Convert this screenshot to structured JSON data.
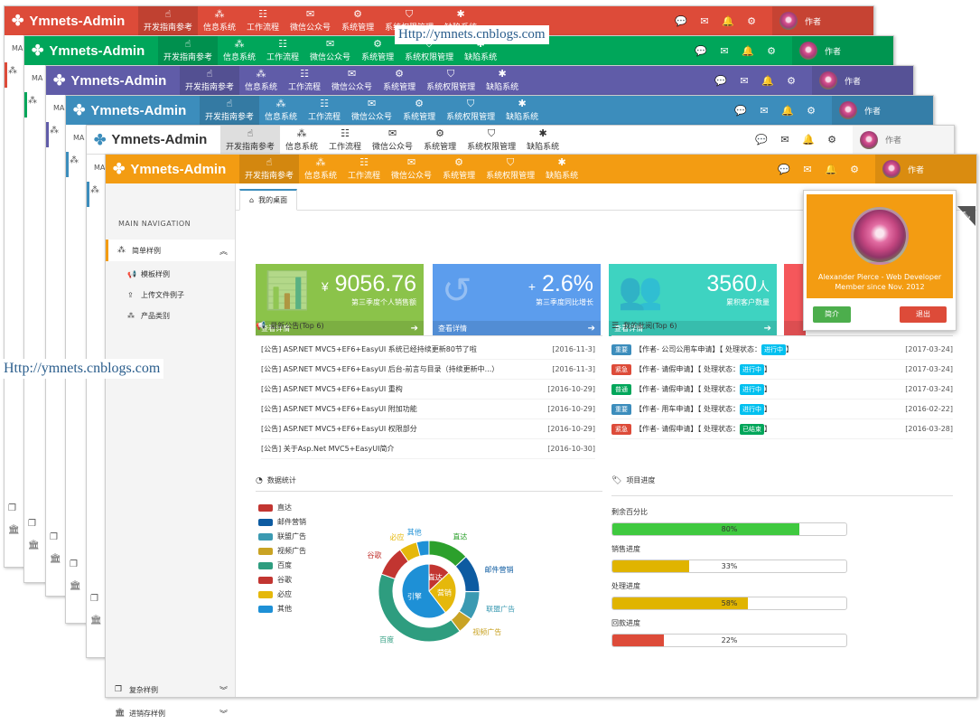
{
  "app": {
    "logo_icon": "pinwheel-icon",
    "title": "Ymnets-Admin"
  },
  "nav": [
    {
      "label": "开发指南参考",
      "icon": "hand-pointer-icon"
    },
    {
      "label": "信息系统",
      "icon": "sitemap-icon"
    },
    {
      "label": "工作流程",
      "icon": "list-ordered-icon"
    },
    {
      "label": "微信公众号",
      "icon": "wechat-icon"
    },
    {
      "label": "系统管理",
      "icon": "gears-icon"
    },
    {
      "label": "系统权限管理",
      "icon": "shield-icon"
    },
    {
      "label": "缺陷系统",
      "icon": "bug-icon"
    }
  ],
  "topbar": {
    "user": "作者",
    "icons": [
      "comment-icon",
      "envelope-icon",
      "bell-icon",
      "gears-icon"
    ]
  },
  "themes": [
    "#dd4b39",
    "#00a65a",
    "#605ca8",
    "#3c8dbc",
    "#ffffff",
    "#f39c12"
  ],
  "sidebar": {
    "heading": "MAIN NAVIGATION",
    "stub_heading": "MA",
    "menu": "简单样例",
    "sub": [
      "模板样例",
      "上传文件例子",
      "产品类别"
    ],
    "bottom": [
      "复杂样例",
      "进销存样例"
    ]
  },
  "tab": {
    "label": "我的桌面"
  },
  "stats": [
    {
      "prefix": "¥",
      "value": "9056.76",
      "suffix": "",
      "label": "第三季度个人销售额",
      "more": "查看详情",
      "color": "#8bc34a"
    },
    {
      "prefix": "+",
      "value": "2.6%",
      "suffix": "",
      "label": "第三季度同比增长",
      "more": "查看详情",
      "color": "#5c9ded"
    },
    {
      "prefix": "",
      "value": "3560",
      "suffix": "人",
      "label": "累积客户数量",
      "more": "查看详情",
      "color": "#3ed3c1"
    }
  ],
  "notice": {
    "title": "最新公告(Top 6)",
    "rows": [
      {
        "text": "[公告] ASP.NET MVC5+EF6+EasyUI 系统已经持续更新80节了啦",
        "date": "[2016-11-3]"
      },
      {
        "text": "[公告] ASP.NET MVC5+EF6+EasyUI 后台-前言与目录（持续更新中...）",
        "date": "[2016-11-3]"
      },
      {
        "text": "[公告] ASP.NET MVC5+EF6+EasyUI 重构",
        "date": "[2016-10-29]"
      },
      {
        "text": "[公告] ASP.NET MVC5+EF6+EasyUI 附加功能",
        "date": "[2016-10-29]"
      },
      {
        "text": "[公告] ASP.NET MVC5+EF6+EasyUI 权限部分",
        "date": "[2016-10-29]"
      },
      {
        "text": "[公告] 关于Asp.Net MVC5+EasyUI简介",
        "date": "[2016-10-30]"
      }
    ]
  },
  "approval": {
    "title": "我的批阅(Top 6)",
    "rows": [
      {
        "tag": "重要",
        "tagcolor": "#3c8dbc",
        "text": "【作者- 公司公用车申请】【 处理状态：",
        "status": "进行中",
        "scolor": "#00c0ef",
        "date": "[2017-03-24]"
      },
      {
        "tag": "紧急",
        "tagcolor": "#dd4b39",
        "text": "【作者- 请假申请】【 处理状态：",
        "status": "进行中",
        "scolor": "#00c0ef",
        "date": "[2017-03-24]"
      },
      {
        "tag": "普通",
        "tagcolor": "#00a65a",
        "text": "【作者- 请假申请】【 处理状态：",
        "status": "进行中",
        "scolor": "#00c0ef",
        "date": "[2017-03-24]"
      },
      {
        "tag": "重要",
        "tagcolor": "#3c8dbc",
        "text": "【作者- 用车申请】【 处理状态：",
        "status": "进行中",
        "scolor": "#00c0ef",
        "date": "[2016-02-22]"
      },
      {
        "tag": "紧急",
        "tagcolor": "#dd4b39",
        "text": "【作者- 请假申请】【 处理状态：",
        "status": "已结束",
        "scolor": "#00a65a",
        "date": "[2016-03-28]"
      }
    ],
    "close": "】"
  },
  "stats_chart": {
    "title": "数据统计"
  },
  "chart_data": {
    "type": "pie",
    "legend": [
      {
        "name": "直达",
        "color": "#c23531"
      },
      {
        "name": "邮件营销",
        "color": "#0d5ba1"
      },
      {
        "name": "联盟广告",
        "color": "#3b9ab2"
      },
      {
        "name": "视频广告",
        "color": "#c9a324"
      },
      {
        "name": "百度",
        "color": "#2e9d7f"
      },
      {
        "name": "谷歌",
        "color": "#c23531"
      },
      {
        "name": "必应",
        "color": "#e5b80b"
      },
      {
        "name": "其他",
        "color": "#1e90d6"
      }
    ],
    "inner": [
      {
        "name": "直达",
        "value": 335,
        "color": "#c23531"
      },
      {
        "name": "营销",
        "value": 679,
        "color": "#e5b80b"
      },
      {
        "name": "引擎",
        "value": 1548,
        "color": "#1e90d6"
      }
    ],
    "outer": [
      {
        "name": "直达",
        "value": 335,
        "color": "#2ca02c"
      },
      {
        "name": "邮件营销",
        "value": 310,
        "color": "#0d5ba1"
      },
      {
        "name": "联盟广告",
        "value": 234,
        "color": "#3b9ab2"
      },
      {
        "name": "视频广告",
        "value": 135,
        "color": "#c9a324"
      },
      {
        "name": "百度",
        "value": 1048,
        "color": "#2e9d7f"
      },
      {
        "name": "谷歌",
        "value": 251,
        "color": "#c23531"
      },
      {
        "name": "必应",
        "value": 147,
        "color": "#e5b80b"
      },
      {
        "name": "其他",
        "value": 102,
        "color": "#1e90d6"
      }
    ]
  },
  "progress": {
    "title": "项目进度",
    "items": [
      {
        "label": "剩余百分比",
        "value": 80,
        "text": "80%",
        "color": "#3fc93f"
      },
      {
        "label": "销售进度",
        "value": 33,
        "text": "33%",
        "color": "#e0b400"
      },
      {
        "label": "处理进度",
        "value": 58,
        "text": "58%",
        "color": "#e0b400"
      },
      {
        "label": "回款进度",
        "value": 22,
        "text": "22%",
        "color": "#dd4b39"
      }
    ]
  },
  "dropdown": {
    "name": "Alexander Pierce - Web Developer",
    "member": "Member since Nov. 2012",
    "profile": "简介",
    "logout": "退出"
  },
  "watermark": "Http://ymnets.cnblogs.com"
}
